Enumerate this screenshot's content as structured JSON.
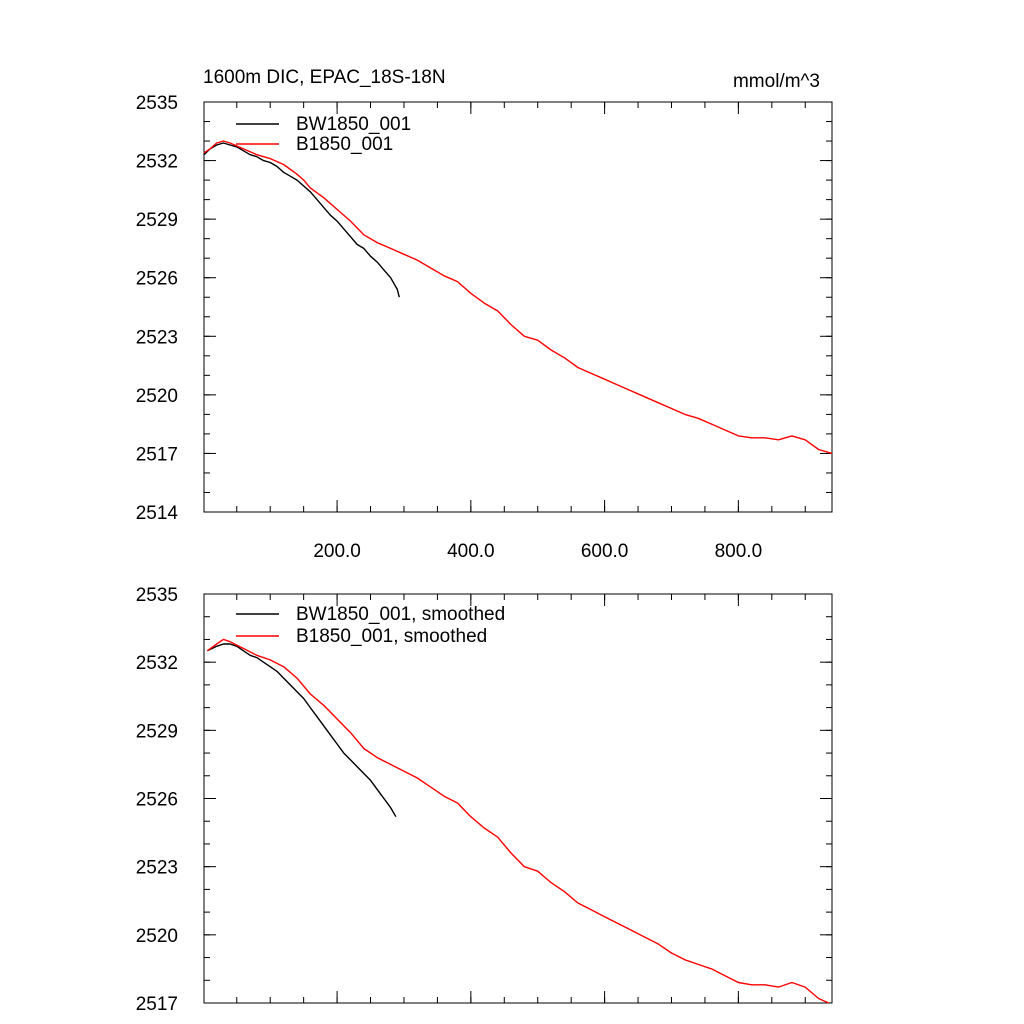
{
  "figure_title": "1600m DIC, EPAC_18S-18N",
  "units": "mmol/m^3",
  "colors": {
    "bw": "#000000",
    "b": "#ff0000"
  },
  "chart_data": [
    {
      "type": "line",
      "panel": "raw",
      "title": "1600m DIC, EPAC_18S-18N",
      "units_label": "mmol/m^3",
      "xlabel": "",
      "ylabel": "",
      "xlim": [
        1,
        940
      ],
      "ylim": [
        2514,
        2535
      ],
      "x_ticks": [
        200,
        400,
        600,
        800
      ],
      "x_tick_labels": [
        "200.0",
        "400.0",
        "600.0",
        "800.0"
      ],
      "y_ticks": [
        2514,
        2517,
        2520,
        2523,
        2526,
        2529,
        2532,
        2535
      ],
      "y_tick_labels": [
        "2514",
        "2517",
        "2520",
        "2523",
        "2526",
        "2529",
        "2532",
        "2535"
      ],
      "legend": "top-left",
      "grid": false,
      "series": [
        {
          "name": "BW1850_001",
          "color": "#000000",
          "x": [
            1,
            10,
            20,
            30,
            40,
            50,
            60,
            70,
            80,
            90,
            100,
            110,
            120,
            130,
            140,
            150,
            160,
            170,
            180,
            190,
            200,
            210,
            220,
            230,
            240,
            250,
            260,
            270,
            280,
            290,
            293
          ],
          "y": [
            2532.3,
            2532.6,
            2532.8,
            2532.9,
            2532.8,
            2532.7,
            2532.5,
            2532.3,
            2532.2,
            2532.0,
            2531.9,
            2531.7,
            2531.4,
            2531.2,
            2531.0,
            2530.7,
            2530.4,
            2530.0,
            2529.6,
            2529.2,
            2528.9,
            2528.5,
            2528.1,
            2527.7,
            2527.5,
            2527.1,
            2526.8,
            2526.4,
            2526.0,
            2525.4,
            2525.0
          ]
        },
        {
          "name": "B1850_001",
          "color": "#ff0000",
          "x": [
            1,
            10,
            20,
            30,
            40,
            60,
            80,
            100,
            120,
            140,
            150,
            160,
            180,
            200,
            220,
            240,
            260,
            280,
            300,
            320,
            340,
            360,
            380,
            400,
            420,
            440,
            460,
            480,
            500,
            520,
            540,
            560,
            580,
            600,
            620,
            640,
            660,
            680,
            700,
            720,
            740,
            760,
            780,
            800,
            820,
            840,
            860,
            880,
            900,
            920,
            940
          ],
          "y": [
            2532.4,
            2532.6,
            2532.9,
            2533.0,
            2532.9,
            2532.6,
            2532.3,
            2532.1,
            2531.8,
            2531.3,
            2531.0,
            2530.6,
            2530.1,
            2529.5,
            2528.9,
            2528.2,
            2527.8,
            2527.5,
            2527.2,
            2526.9,
            2526.5,
            2526.1,
            2525.8,
            2525.2,
            2524.7,
            2524.3,
            2523.6,
            2523.0,
            2522.8,
            2522.3,
            2521.9,
            2521.4,
            2521.1,
            2520.8,
            2520.5,
            2520.2,
            2519.9,
            2519.6,
            2519.3,
            2519.0,
            2518.8,
            2518.5,
            2518.2,
            2517.9,
            2517.8,
            2517.8,
            2517.7,
            2517.9,
            2517.7,
            2517.2,
            2517.0
          ]
        }
      ]
    },
    {
      "type": "line",
      "panel": "smoothed",
      "title": "",
      "xlabel": "",
      "ylabel": "",
      "xlim": [
        1,
        940
      ],
      "ylim": [
        2517,
        2535
      ],
      "x_ticks": [
        200,
        400,
        600,
        800
      ],
      "x_tick_labels": [],
      "y_ticks": [
        2517,
        2520,
        2523,
        2526,
        2529,
        2532,
        2535
      ],
      "y_tick_labels": [
        "2517",
        "2520",
        "2523",
        "2526",
        "2529",
        "2532",
        "2535"
      ],
      "legend": "top-left",
      "grid": false,
      "series": [
        {
          "name": "BW1850_001, smoothed",
          "color": "#000000",
          "x": [
            6,
            20,
            30,
            40,
            50,
            60,
            70,
            80,
            90,
            100,
            110,
            120,
            130,
            140,
            150,
            160,
            170,
            180,
            190,
            200,
            210,
            220,
            230,
            240,
            250,
            260,
            270,
            280,
            288
          ],
          "y": [
            2532.5,
            2532.7,
            2532.8,
            2532.8,
            2532.7,
            2532.5,
            2532.3,
            2532.2,
            2532.0,
            2531.8,
            2531.6,
            2531.3,
            2531.0,
            2530.7,
            2530.4,
            2530.0,
            2529.6,
            2529.2,
            2528.8,
            2528.4,
            2528.0,
            2527.7,
            2527.4,
            2527.1,
            2526.8,
            2526.4,
            2526.0,
            2525.6,
            2525.2
          ]
        },
        {
          "name": "B1850_001, smoothed",
          "color": "#ff0000",
          "x": [
            6,
            20,
            30,
            40,
            60,
            80,
            100,
            120,
            140,
            160,
            180,
            200,
            220,
            240,
            260,
            280,
            300,
            320,
            340,
            360,
            380,
            400,
            420,
            440,
            460,
            480,
            500,
            520,
            540,
            560,
            580,
            600,
            620,
            640,
            660,
            680,
            700,
            720,
            740,
            760,
            780,
            800,
            820,
            840,
            860,
            880,
            900,
            920,
            935
          ],
          "y": [
            2532.5,
            2532.8,
            2533.0,
            2532.9,
            2532.6,
            2532.3,
            2532.1,
            2531.8,
            2531.3,
            2530.6,
            2530.1,
            2529.5,
            2528.9,
            2528.2,
            2527.8,
            2527.5,
            2527.2,
            2526.9,
            2526.5,
            2526.1,
            2525.8,
            2525.2,
            2524.7,
            2524.3,
            2523.6,
            2523.0,
            2522.8,
            2522.3,
            2521.9,
            2521.4,
            2521.1,
            2520.8,
            2520.5,
            2520.2,
            2519.9,
            2519.6,
            2519.2,
            2518.9,
            2518.7,
            2518.5,
            2518.2,
            2517.9,
            2517.8,
            2517.8,
            2517.7,
            2517.9,
            2517.7,
            2517.2,
            2517.0
          ]
        }
      ]
    }
  ]
}
